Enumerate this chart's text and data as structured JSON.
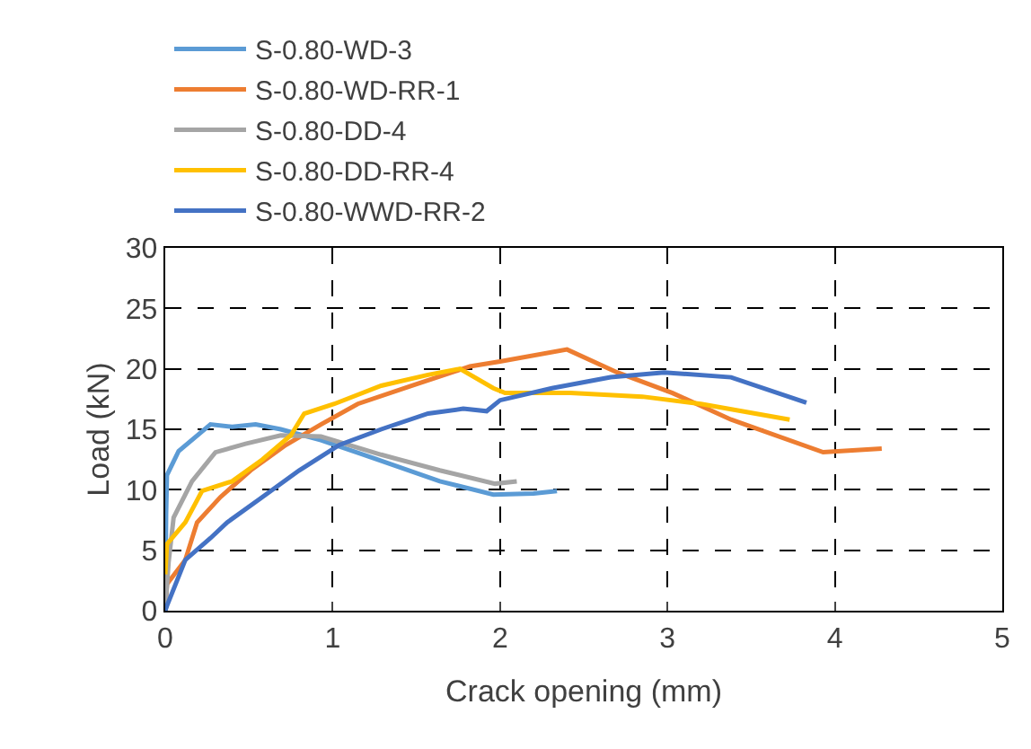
{
  "chart_data": {
    "type": "line",
    "xlabel": "Crack opening (mm)",
    "ylabel": "Load (kN)",
    "xlim": [
      0,
      5
    ],
    "xticks": [
      0,
      1,
      2,
      3,
      4,
      5
    ],
    "ylim": [
      0,
      30
    ],
    "yticks": [
      0,
      5,
      10,
      15,
      20,
      25,
      30
    ],
    "grid": true,
    "legend": "top",
    "marker": "none",
    "line_style": "solid",
    "series": [
      {
        "name": "S-0.80-WD-3",
        "color": "#5b9bd5",
        "x": [
          0,
          0.005,
          0.01,
          0.08,
          0.27,
          0.4,
          0.54,
          0.69,
          0.93,
          1.29,
          1.64,
          1.96,
          2.2,
          2.34
        ],
        "values": [
          0,
          8,
          11.2,
          13.2,
          15.4,
          15.2,
          15.4,
          15.0,
          14.1,
          12.4,
          10.7,
          9.6,
          9.7,
          9.9
        ]
      },
      {
        "name": "S-0.80-WD-RR-1",
        "color": "#ed7d31",
        "x": [
          0,
          0.01,
          0.12,
          0.19,
          0.33,
          0.51,
          0.72,
          0.93,
          1.15,
          1.47,
          1.82,
          2.0,
          2.4,
          2.7,
          3.03,
          3.38,
          3.93,
          4.28
        ],
        "values": [
          0,
          2.2,
          4.2,
          7.3,
          9.4,
          11.6,
          13.7,
          15.4,
          17.1,
          18.6,
          20.2,
          20.6,
          21.6,
          19.7,
          18.0,
          15.8,
          13.1,
          13.4
        ]
      },
      {
        "name": "S-0.80-DD-4",
        "color": "#a5a5a5",
        "x": [
          0,
          0.02,
          0.05,
          0.16,
          0.3,
          0.48,
          0.69,
          0.93,
          1.29,
          1.64,
          1.97,
          2.1
        ],
        "values": [
          0,
          4,
          7.7,
          10.7,
          13.1,
          13.8,
          14.5,
          14.4,
          12.9,
          11.6,
          10.5,
          10.7
        ]
      },
      {
        "name": "S-0.80-DD-RR-4",
        "color": "#ffc000",
        "x": [
          0,
          0.01,
          0.12,
          0.22,
          0.4,
          0.58,
          0.75,
          0.83,
          1.01,
          1.29,
          1.57,
          1.76,
          1.96,
          2.03,
          2.42,
          2.85,
          3.2,
          3.73
        ],
        "values": [
          3,
          5.5,
          7.3,
          9.9,
          10.7,
          12.5,
          14.5,
          16.3,
          17.1,
          18.6,
          19.5,
          20.0,
          18.4,
          18.0,
          18.0,
          17.7,
          17.1,
          15.8
        ]
      },
      {
        "name": "S-0.80-WWD-RR-2",
        "color": "#4472c4",
        "x": [
          0,
          0.01,
          0.12,
          0.27,
          0.37,
          0.58,
          0.8,
          1.04,
          1.29,
          1.57,
          1.78,
          1.92,
          2.0,
          2.31,
          2.66,
          2.98,
          3.38,
          3.83
        ],
        "values": [
          0,
          0.4,
          4.2,
          6.0,
          7.3,
          9.4,
          11.6,
          13.7,
          15.0,
          16.3,
          16.7,
          16.5,
          17.4,
          18.4,
          19.3,
          19.7,
          19.3,
          17.2
        ]
      }
    ]
  }
}
